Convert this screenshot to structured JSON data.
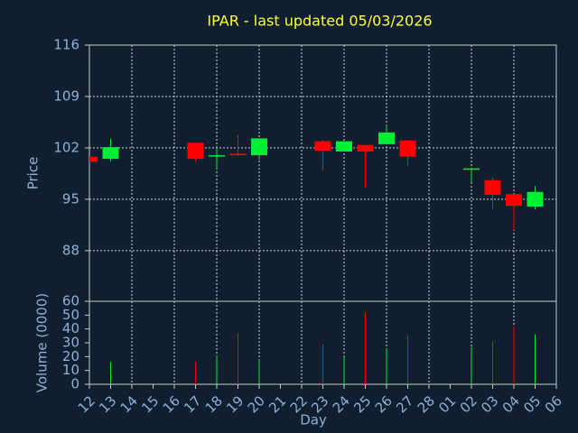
{
  "chart_data": [
    {
      "type": "candlestick",
      "title": "IPAR - last updated 05/03/2026",
      "ylabel": "Price",
      "open": [
        100.8,
        100.5,
        null,
        null,
        null,
        102.7,
        100.9,
        101.2,
        101.0,
        null,
        null,
        102.9,
        101.5,
        102.4,
        102.5,
        103.0,
        null,
        null,
        99.1,
        97.6,
        95.7,
        94.0,
        null
      ],
      "high": [
        100.8,
        103.2,
        null,
        null,
        null,
        102.7,
        102.1,
        103.8,
        103.3,
        null,
        null,
        103.1,
        102.9,
        102.4,
        105.1,
        103.0,
        null,
        null,
        99.3,
        97.9,
        95.7,
        96.8,
        null
      ],
      "low": [
        100.1,
        100.2,
        null,
        null,
        null,
        100.1,
        99.2,
        100.9,
        100.4,
        null,
        null,
        98.9,
        101.5,
        96.5,
        102.5,
        99.6,
        null,
        null,
        97.3,
        93.7,
        90.8,
        93.6,
        null
      ],
      "close": [
        100.1,
        102.1,
        null,
        null,
        null,
        100.5,
        101.0,
        101.0,
        103.3,
        null,
        null,
        101.6,
        102.9,
        101.5,
        104.1,
        100.8,
        null,
        null,
        99.2,
        95.6,
        94.1,
        96.0,
        null
      ],
      "up_color": "#00ee33",
      "down_color": "#ff0000",
      "ylim": [
        81.1,
        116
      ],
      "yticks": [
        88,
        95,
        102,
        109,
        116
      ],
      "grid": true
    },
    {
      "type": "bar",
      "ylabel": "Volume (0000)",
      "xlabel": "Day",
      "categories": [
        "12",
        "13",
        "14",
        "15",
        "16",
        "17",
        "18",
        "19",
        "20",
        "21",
        "22",
        "23",
        "24",
        "25",
        "26",
        "27",
        "28",
        "01",
        "02",
        "03",
        "04",
        "05",
        "06"
      ],
      "values": [
        null,
        16,
        null,
        null,
        null,
        16,
        21,
        37,
        18,
        null,
        null,
        29,
        20,
        52,
        26,
        35,
        null,
        null,
        27,
        31,
        42,
        36,
        null
      ],
      "ylim": [
        0,
        60
      ],
      "yticks": [
        0,
        10,
        20,
        30,
        40,
        50,
        60
      ]
    }
  ]
}
